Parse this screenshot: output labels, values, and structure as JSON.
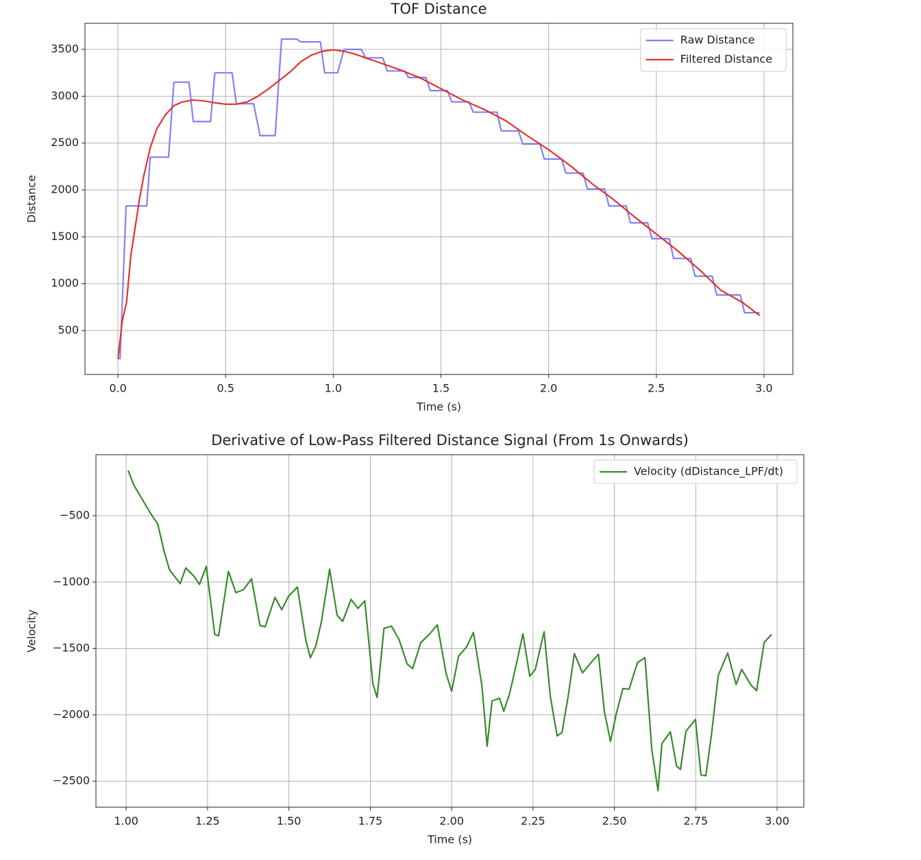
{
  "chart_data": [
    {
      "type": "line",
      "title": "TOF Distance",
      "xlabel": "Time (s)",
      "ylabel": "Distance",
      "xlim": [
        -0.153,
        3.134
      ],
      "ylim": [
        32,
        3778
      ],
      "xticks": [
        {
          "value": 0,
          "label": "0.0"
        },
        0.5,
        {
          "value": 1,
          "label": "1.0"
        },
        1.5,
        {
          "value": 2,
          "label": "2.0"
        },
        2.5,
        {
          "value": 3,
          "label": "3.0"
        }
      ],
      "yticks": [
        500,
        1000,
        1500,
        2000,
        2500,
        3000,
        3500
      ],
      "grid": true,
      "legend": "upper right",
      "series": [
        {
          "name": "Raw Distance",
          "color": "#8080f8",
          "x": [
            0,
            0.01,
            0.038,
            0.134,
            0.15,
            0.235,
            0.26,
            0.33,
            0.35,
            0.43,
            0.45,
            0.53,
            0.55,
            0.63,
            0.66,
            0.73,
            0.76,
            0.83,
            0.85,
            0.94,
            0.96,
            1.02,
            1.05,
            1.13,
            1.15,
            1.23,
            1.25,
            1.33,
            1.35,
            1.43,
            1.45,
            1.53,
            1.55,
            1.63,
            1.65,
            1.76,
            1.78,
            1.86,
            1.88,
            1.96,
            1.98,
            2.06,
            2.08,
            2.16,
            2.18,
            2.26,
            2.28,
            2.36,
            2.38,
            2.46,
            2.48,
            2.56,
            2.58,
            2.66,
            2.68,
            2.76,
            2.78,
            2.89,
            2.91,
            2.98
          ],
          "values": [
            200,
            200,
            1830,
            1830,
            2350,
            2350,
            3150,
            3150,
            2730,
            2730,
            3250,
            3250,
            2920,
            2920,
            2580,
            2580,
            3610,
            3610,
            3580,
            3580,
            3250,
            3250,
            3500,
            3500,
            3410,
            3410,
            3270,
            3270,
            3200,
            3200,
            3060,
            3060,
            2940,
            2940,
            2830,
            2830,
            2630,
            2630,
            2490,
            2490,
            2330,
            2330,
            2180,
            2180,
            2010,
            2010,
            1830,
            1830,
            1650,
            1650,
            1480,
            1480,
            1270,
            1270,
            1080,
            1080,
            880,
            880,
            690,
            690
          ]
        },
        {
          "name": "Filtered Distance",
          "color": "#e2312a",
          "x": [
            0,
            0.02,
            0.04,
            0.06,
            0.08,
            0.1,
            0.12,
            0.15,
            0.18,
            0.22,
            0.26,
            0.3,
            0.35,
            0.4,
            0.45,
            0.5,
            0.55,
            0.6,
            0.65,
            0.7,
            0.75,
            0.8,
            0.85,
            0.9,
            0.95,
            1.0,
            1.05,
            1.1,
            1.15,
            1.2,
            1.3,
            1.4,
            1.5,
            1.6,
            1.7,
            1.8,
            1.9,
            2.0,
            2.1,
            2.2,
            2.3,
            2.4,
            2.5,
            2.6,
            2.7,
            2.8,
            2.9,
            2.98
          ],
          "values": [
            200,
            600,
            800,
            1300,
            1600,
            1900,
            2150,
            2450,
            2650,
            2800,
            2900,
            2940,
            2960,
            2950,
            2930,
            2915,
            2915,
            2940,
            3000,
            3080,
            3170,
            3260,
            3370,
            3440,
            3480,
            3495,
            3480,
            3450,
            3410,
            3370,
            3290,
            3200,
            3080,
            2960,
            2860,
            2740,
            2580,
            2430,
            2260,
            2070,
            1900,
            1710,
            1530,
            1350,
            1150,
            930,
            800,
            660
          ]
        }
      ]
    },
    {
      "type": "line",
      "title": "Derivative of Low-Pass Filtered Distance Signal (From 1s Onwards)",
      "xlabel": "Time (s)",
      "ylabel": "Velocity",
      "xlim": [
        0.907,
        3.082
      ],
      "ylim": [
        -2696,
        -40
      ],
      "xticks": [
        {
          "value": 1,
          "label": "1.00"
        },
        1.25,
        {
          "value": 1.5,
          "label": "1.50"
        },
        1.75,
        {
          "value": 2,
          "label": "2.00"
        },
        2.25,
        {
          "value": 2.5,
          "label": "2.50"
        },
        2.75,
        {
          "value": 3,
          "label": "3.00"
        }
      ],
      "yticks": [
        {
          "value": -500,
          "label": "−500"
        },
        {
          "value": -1000,
          "label": "−1000"
        },
        {
          "value": -1500,
          "label": "−1500"
        },
        {
          "value": -2000,
          "label": "−2000"
        },
        {
          "value": -2500,
          "label": "−2500"
        }
      ],
      "grid": true,
      "legend": "upper right",
      "series": [
        {
          "name": "Velocity (dDistance_LPF/dt)",
          "color": "#368a2a",
          "x": [
            1.006,
            1.023,
            1.048,
            1.074,
            1.097,
            1.116,
            1.133,
            1.166,
            1.183,
            1.208,
            1.225,
            1.246,
            1.272,
            1.284,
            1.314,
            1.337,
            1.36,
            1.385,
            1.411,
            1.427,
            1.457,
            1.478,
            1.499,
            1.526,
            1.552,
            1.566,
            1.583,
            1.6,
            1.625,
            1.648,
            1.665,
            1.691,
            1.712,
            1.733,
            1.758,
            1.771,
            1.792,
            1.815,
            1.838,
            1.863,
            1.88,
            1.905,
            1.931,
            1.956,
            1.983,
            2.0,
            2.021,
            2.046,
            2.067,
            2.093,
            2.109,
            2.124,
            2.147,
            2.16,
            2.177,
            2.198,
            2.219,
            2.24,
            2.257,
            2.284,
            2.303,
            2.324,
            2.339,
            2.358,
            2.377,
            2.402,
            2.423,
            2.451,
            2.469,
            2.488,
            2.505,
            2.526,
            2.545,
            2.571,
            2.594,
            2.615,
            2.634,
            2.646,
            2.672,
            2.691,
            2.703,
            2.72,
            2.749,
            2.766,
            2.781,
            2.798,
            2.819,
            2.848,
            2.874,
            2.891,
            2.92,
            2.937,
            2.96,
            2.983
          ],
          "values": [
            -159,
            -267,
            -371,
            -479,
            -562,
            -764,
            -908,
            -1012,
            -893,
            -955,
            -1017,
            -882,
            -1394,
            -1404,
            -919,
            -1079,
            -1058,
            -975,
            -1327,
            -1337,
            -1115,
            -1208,
            -1105,
            -1037,
            -1441,
            -1570,
            -1477,
            -1296,
            -903,
            -1249,
            -1296,
            -1130,
            -1198,
            -1141,
            -1766,
            -1870,
            -1348,
            -1332,
            -1430,
            -1616,
            -1652,
            -1456,
            -1394,
            -1322,
            -1689,
            -1823,
            -1559,
            -1487,
            -1379,
            -1782,
            -2236,
            -1895,
            -1875,
            -1973,
            -1849,
            -1627,
            -1389,
            -1710,
            -1658,
            -1374,
            -1859,
            -2159,
            -2133,
            -1859,
            -1539,
            -1684,
            -1622,
            -1544,
            -1973,
            -2200,
            -1999,
            -1802,
            -1807,
            -1606,
            -1570,
            -2262,
            -2572,
            -2216,
            -2128,
            -2386,
            -2412,
            -2123,
            -2035,
            -2453,
            -2459,
            -2154,
            -1704,
            -1534,
            -1772,
            -1658,
            -1777,
            -1818,
            -1456,
            -1394
          ]
        }
      ]
    }
  ]
}
